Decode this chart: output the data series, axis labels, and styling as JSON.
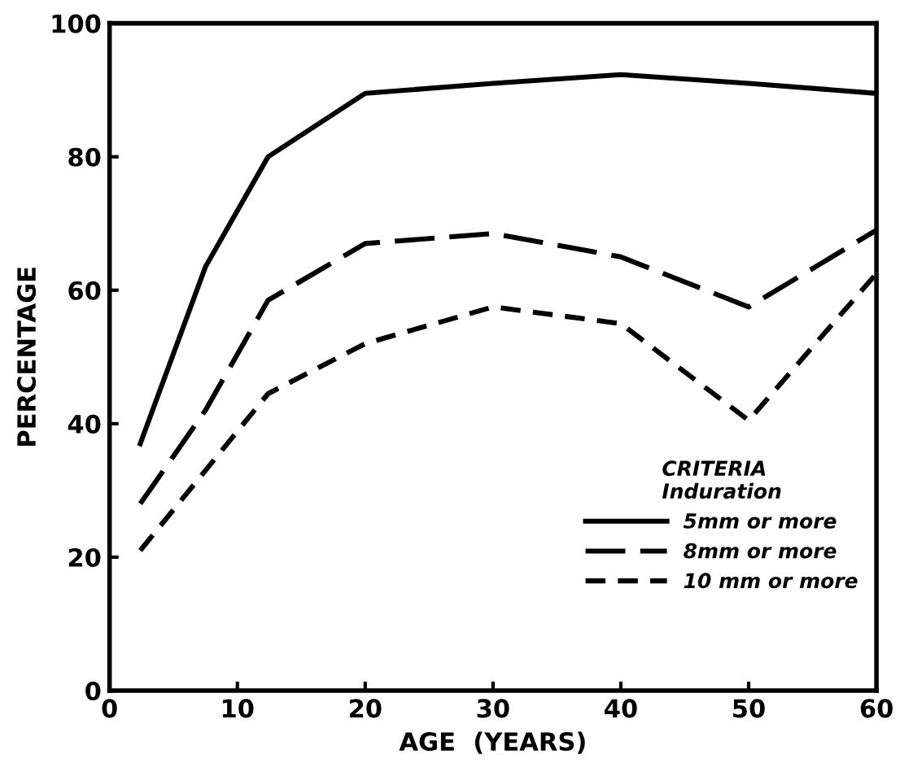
{
  "chart_data": {
    "type": "line",
    "xlabel": "AGE  (YEARS)",
    "ylabel": "PERCENTAGE",
    "legend_title": "CRITERIA\nInduration",
    "xlim": [
      0,
      60
    ],
    "xticks": [
      0,
      10,
      20,
      30,
      40,
      50,
      60
    ],
    "ylim": [
      0,
      100
    ],
    "yticks": [
      0,
      20,
      40,
      60,
      80,
      100
    ],
    "grid": false,
    "legend": "bottom right",
    "series": [
      {
        "name": "5mm or more",
        "color": "#000000",
        "line_style": "solid",
        "x": [
          2.4,
          7.5,
          12.4,
          20,
          30,
          40,
          50,
          60
        ],
        "values": [
          37,
          63.5,
          80,
          89.5,
          91,
          92.3,
          91,
          89.5
        ]
      },
      {
        "name": "8mm or more",
        "color": "#000000",
        "line_style": "longdash",
        "x": [
          2.4,
          7.5,
          12.4,
          20,
          30,
          40,
          50,
          60
        ],
        "values": [
          28,
          42,
          58.5,
          67,
          68.5,
          65,
          57.5,
          69
        ]
      },
      {
        "name": "10 mm or more",
        "color": "#000000",
        "line_style": "dashed",
        "x": [
          2.4,
          12.4,
          20,
          30,
          40,
          50,
          60
        ],
        "values": [
          21,
          44.5,
          52,
          57.5,
          55,
          40.5,
          62.5
        ]
      }
    ]
  }
}
